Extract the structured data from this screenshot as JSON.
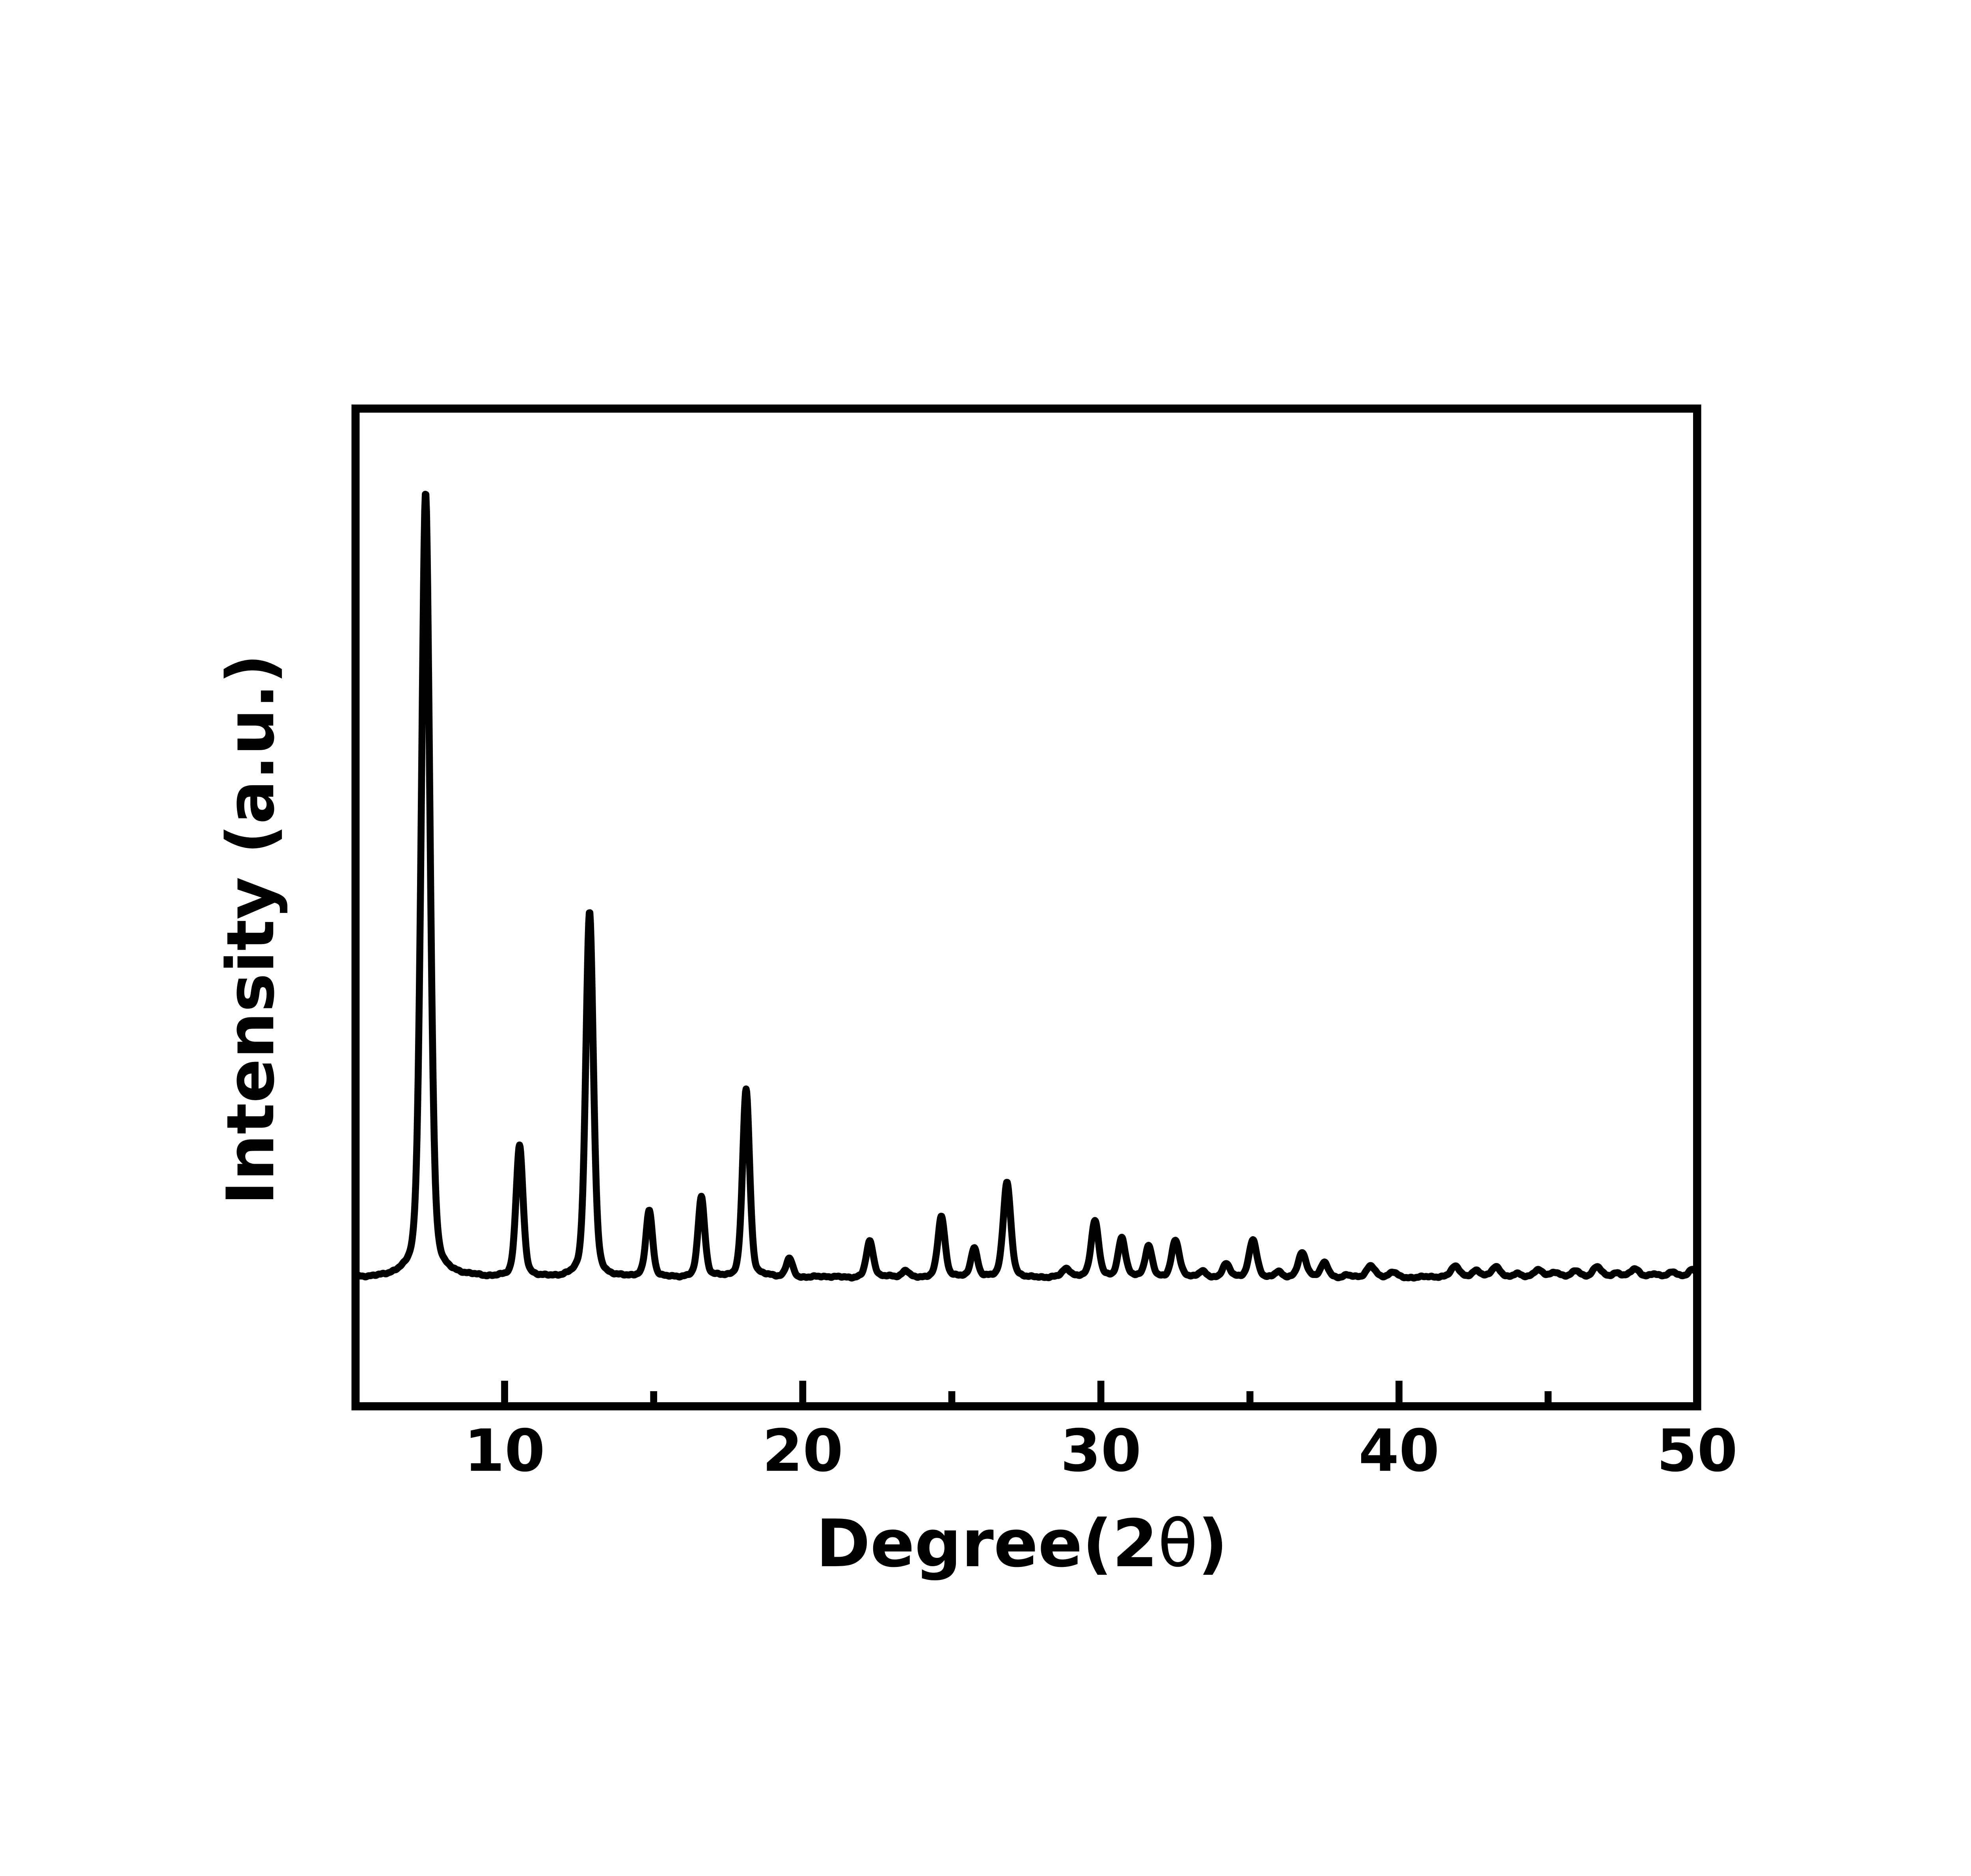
{
  "figure": {
    "background_color": "#ffffff",
    "frame_color": "#000000",
    "trace_color": "#000000",
    "text_color": "#000000"
  },
  "axes": {
    "x": {
      "label": "Degree(2θ)",
      "label_parts": [
        {
          "text": "Degree(2",
          "bold": true
        },
        {
          "text": "θ",
          "bold": false
        },
        {
          "text": ")",
          "bold": true
        }
      ],
      "min": 5,
      "max": 50,
      "major_ticks": [
        10,
        20,
        30,
        40,
        50
      ],
      "major_tick_labels": [
        "10",
        "20",
        "30",
        "40",
        "50"
      ],
      "minor_ticks": [
        15,
        25,
        35,
        45
      ],
      "ticks_inside": true,
      "grid": false
    },
    "y": {
      "label": "Intensity (a.u.)",
      "ticks": [],
      "grid": false
    }
  },
  "chart_data": {
    "type": "line",
    "title": "",
    "xlabel": "Degree(2θ)",
    "ylabel": "Intensity (a.u.)",
    "legend": "none",
    "x_range": [
      5,
      50
    ],
    "ylim": [
      -16.4,
      110.7
    ],
    "baseline_intensity": 0,
    "intensity_units": "relative (strongest peak = 100)",
    "peak_shape": "pseudo-voigt",
    "peaks": [
      {
        "two_theta": 7.35,
        "intensity": 100,
        "fwhm": 0.34
      },
      {
        "two_theta": 10.5,
        "intensity": 16.6,
        "fwhm": 0.28
      },
      {
        "two_theta": 12.85,
        "intensity": 46.5,
        "fwhm": 0.3
      },
      {
        "two_theta": 14.85,
        "intensity": 8.4,
        "fwhm": 0.26
      },
      {
        "two_theta": 16.6,
        "intensity": 10.2,
        "fwhm": 0.26
      },
      {
        "two_theta": 18.1,
        "intensity": 24.0,
        "fwhm": 0.28
      },
      {
        "two_theta": 19.55,
        "intensity": 2.4,
        "fwhm": 0.26
      },
      {
        "two_theta": 22.25,
        "intensity": 4.6,
        "fwhm": 0.28
      },
      {
        "two_theta": 23.45,
        "intensity": 0.9,
        "fwhm": 0.26
      },
      {
        "two_theta": 24.65,
        "intensity": 7.7,
        "fwhm": 0.28
      },
      {
        "two_theta": 25.75,
        "intensity": 3.8,
        "fwhm": 0.26
      },
      {
        "two_theta": 26.85,
        "intensity": 12.0,
        "fwhm": 0.3
      },
      {
        "two_theta": 28.85,
        "intensity": 1.0,
        "fwhm": 0.3
      },
      {
        "two_theta": 29.8,
        "intensity": 7.3,
        "fwhm": 0.3
      },
      {
        "two_theta": 30.7,
        "intensity": 5.0,
        "fwhm": 0.28
      },
      {
        "two_theta": 31.6,
        "intensity": 4.0,
        "fwhm": 0.28
      },
      {
        "two_theta": 32.5,
        "intensity": 4.7,
        "fwhm": 0.3
      },
      {
        "two_theta": 33.4,
        "intensity": 0.7,
        "fwhm": 0.28
      },
      {
        "two_theta": 34.2,
        "intensity": 1.7,
        "fwhm": 0.3
      },
      {
        "two_theta": 35.1,
        "intensity": 4.7,
        "fwhm": 0.3
      },
      {
        "two_theta": 35.95,
        "intensity": 0.7,
        "fwhm": 0.28
      },
      {
        "two_theta": 36.75,
        "intensity": 3.0,
        "fwhm": 0.32
      },
      {
        "two_theta": 37.5,
        "intensity": 1.8,
        "fwhm": 0.3
      },
      {
        "two_theta": 38.25,
        "intensity": 0.3,
        "fwhm": 0.3
      },
      {
        "two_theta": 39.05,
        "intensity": 1.4,
        "fwhm": 0.32
      },
      {
        "two_theta": 39.8,
        "intensity": 0.75,
        "fwhm": 0.32
      },
      {
        "two_theta": 41.9,
        "intensity": 1.5,
        "fwhm": 0.36
      },
      {
        "two_theta": 42.6,
        "intensity": 0.8,
        "fwhm": 0.34
      },
      {
        "two_theta": 43.25,
        "intensity": 1.2,
        "fwhm": 0.36
      },
      {
        "two_theta": 43.95,
        "intensity": 0.5,
        "fwhm": 0.34
      },
      {
        "two_theta": 44.65,
        "intensity": 0.95,
        "fwhm": 0.36
      },
      {
        "two_theta": 45.25,
        "intensity": 0.6,
        "fwhm": 0.34
      },
      {
        "two_theta": 45.95,
        "intensity": 0.9,
        "fwhm": 0.36
      },
      {
        "two_theta": 46.65,
        "intensity": 1.3,
        "fwhm": 0.36
      },
      {
        "two_theta": 47.3,
        "intensity": 0.4,
        "fwhm": 0.34
      },
      {
        "two_theta": 47.9,
        "intensity": 1.15,
        "fwhm": 0.38
      },
      {
        "two_theta": 48.55,
        "intensity": 0.5,
        "fwhm": 0.34
      },
      {
        "two_theta": 49.2,
        "intensity": 0.6,
        "fwhm": 0.36
      },
      {
        "two_theta": 49.85,
        "intensity": 1.0,
        "fwhm": 0.34
      }
    ]
  }
}
